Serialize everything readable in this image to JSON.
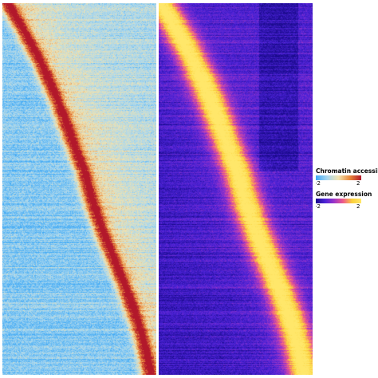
{
  "chart_data": [
    {
      "type": "heatmap",
      "title": "",
      "xlabel": "",
      "ylabel": "",
      "legend_title": "Chromatin accessibility",
      "colorscale": [
        "#3fa9f5",
        "#a8d7f0",
        "#f1e3b0",
        "#e9883b",
        "#b2182b"
      ],
      "vmin": -2,
      "vmax": 2,
      "tick_labels": [
        "-2",
        "2"
      ],
      "pattern": "rows sorted by pseudotime; high values follow a diagonal from top-left to bottom-right"
    },
    {
      "type": "heatmap",
      "title": "",
      "xlabel": "",
      "ylabel": "",
      "legend_title": "Gene expression",
      "colorscale": [
        "#1a0a8c",
        "#4a22d6",
        "#9b34c9",
        "#ef5b8a",
        "#fbd13a",
        "#ffe76a"
      ],
      "vmin": -2,
      "vmax": 2,
      "tick_labels": [
        "-2",
        "2"
      ],
      "pattern": "rows sorted by pseudotime; high values follow a diagonal from top-left to bottom-right"
    }
  ],
  "legend": {
    "chromatin": {
      "title": "Chromatin accessibility",
      "min": "-2",
      "max": "2"
    },
    "expression": {
      "title": "Gene expression",
      "min": "-2",
      "max": "2"
    }
  }
}
